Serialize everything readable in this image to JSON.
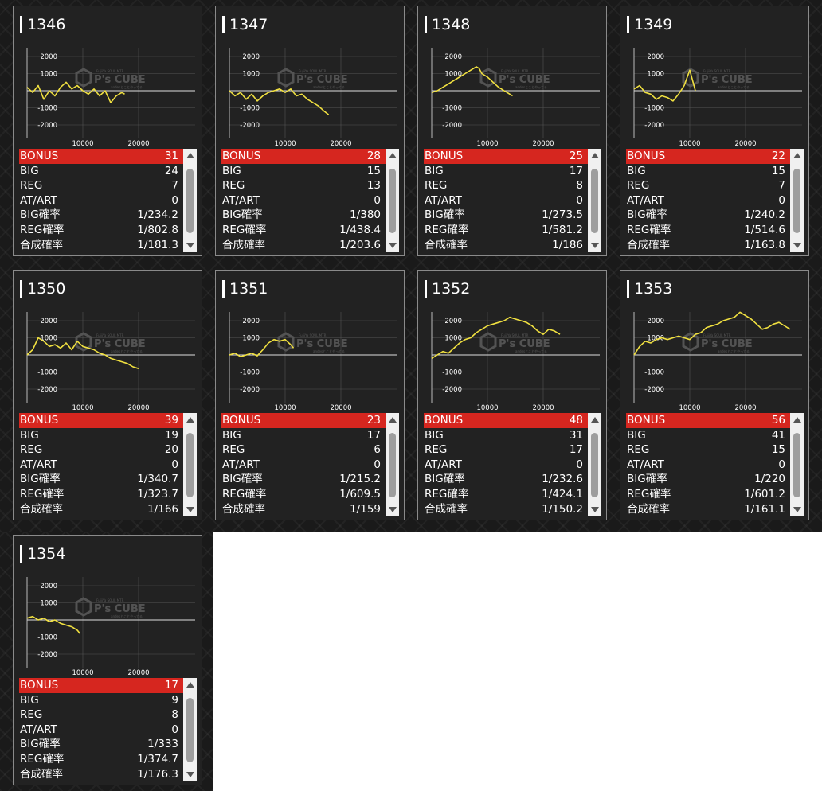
{
  "units": [
    {
      "id": "1346",
      "stats": {
        "bonus": "31",
        "big": "24",
        "reg": "7",
        "at_art": "0",
        "big_rate": "1/234.2",
        "reg_rate": "1/802.8",
        "combined_rate": "1/181.3"
      },
      "chart_data": {
        "type": "line",
        "x_ticks": [
          10000,
          20000
        ],
        "y_ticks": [
          2000,
          1000,
          -1000,
          -2000
        ],
        "xlim": [
          0,
          30000
        ],
        "ylim": [
          -2500,
          2500
        ],
        "x": [
          0,
          1000,
          2000,
          3000,
          4000,
          5000,
          6000,
          7000,
          8000,
          9000,
          10000,
          11000,
          12000,
          13000,
          14000,
          15000,
          16000,
          17000,
          17500
        ],
        "y": [
          200,
          -100,
          300,
          -500,
          0,
          -300,
          200,
          500,
          100,
          300,
          0,
          -200,
          100,
          -300,
          0,
          -700,
          -300,
          -100,
          -200
        ]
      }
    },
    {
      "id": "1347",
      "stats": {
        "bonus": "28",
        "big": "15",
        "reg": "13",
        "at_art": "0",
        "big_rate": "1/380",
        "reg_rate": "1/438.4",
        "combined_rate": "1/203.6"
      },
      "chart_data": {
        "type": "line",
        "x_ticks": [
          10000,
          20000
        ],
        "y_ticks": [
          2000,
          1000,
          -1000,
          -2000
        ],
        "xlim": [
          0,
          30000
        ],
        "ylim": [
          -2500,
          2500
        ],
        "x": [
          0,
          1000,
          2000,
          3000,
          4000,
          5000,
          6000,
          7000,
          8000,
          9000,
          10000,
          11000,
          12000,
          13000,
          14000,
          15000,
          16000,
          17000,
          17800
        ],
        "y": [
          0,
          -300,
          -100,
          -500,
          -200,
          -600,
          -300,
          -100,
          0,
          100,
          -100,
          100,
          -300,
          -200,
          -500,
          -700,
          -900,
          -1200,
          -1400
        ]
      }
    },
    {
      "id": "1348",
      "stats": {
        "bonus": "25",
        "big": "17",
        "reg": "8",
        "at_art": "0",
        "big_rate": "1/273.5",
        "reg_rate": "1/581.2",
        "combined_rate": "1/186"
      },
      "chart_data": {
        "type": "line",
        "x_ticks": [
          10000,
          20000
        ],
        "y_ticks": [
          2000,
          1000,
          -1000,
          -2000
        ],
        "xlim": [
          0,
          30000
        ],
        "ylim": [
          -2500,
          2500
        ],
        "x": [
          0,
          1000,
          2000,
          3000,
          4000,
          5000,
          6000,
          7000,
          8000,
          8500,
          9000,
          10000,
          11000,
          12000,
          13000,
          14000,
          14500
        ],
        "y": [
          -100,
          0,
          200,
          400,
          600,
          800,
          1000,
          1200,
          1400,
          1300,
          1000,
          800,
          500,
          200,
          0,
          -200,
          -300
        ]
      }
    },
    {
      "id": "1349",
      "stats": {
        "bonus": "22",
        "big": "15",
        "reg": "7",
        "at_art": "0",
        "big_rate": "1/240.2",
        "reg_rate": "1/514.6",
        "combined_rate": "1/163.8"
      },
      "chart_data": {
        "type": "line",
        "x_ticks": [
          10000,
          20000
        ],
        "y_ticks": [
          2000,
          1000,
          -1000,
          -2000
        ],
        "xlim": [
          0,
          30000
        ],
        "ylim": [
          -2500,
          2500
        ],
        "x": [
          0,
          1000,
          2000,
          3000,
          4000,
          5000,
          6000,
          7000,
          8000,
          9000,
          10000,
          11000
        ],
        "y": [
          100,
          300,
          -100,
          -200,
          -500,
          -300,
          -400,
          -600,
          -200,
          300,
          1200,
          0
        ]
      }
    },
    {
      "id": "1350",
      "stats": {
        "bonus": "39",
        "big": "19",
        "reg": "20",
        "at_art": "0",
        "big_rate": "1/340.7",
        "reg_rate": "1/323.7",
        "combined_rate": "1/166"
      },
      "chart_data": {
        "type": "line",
        "x_ticks": [
          10000,
          20000
        ],
        "y_ticks": [
          2000,
          1000,
          -1000,
          -2000
        ],
        "xlim": [
          0,
          30000
        ],
        "ylim": [
          -2500,
          2500
        ],
        "x": [
          0,
          1000,
          2000,
          3000,
          4000,
          5000,
          6000,
          7000,
          8000,
          9000,
          10000,
          11000,
          12000,
          13000,
          14000,
          15000,
          16000,
          17000,
          18000,
          19000,
          20000
        ],
        "y": [
          0,
          300,
          1000,
          800,
          500,
          600,
          400,
          700,
          300,
          800,
          500,
          400,
          300,
          100,
          0,
          -200,
          -300,
          -400,
          -500,
          -700,
          -800
        ]
      }
    },
    {
      "id": "1351",
      "stats": {
        "bonus": "23",
        "big": "17",
        "reg": "6",
        "at_art": "0",
        "big_rate": "1/215.2",
        "reg_rate": "1/609.5",
        "combined_rate": "1/159"
      },
      "chart_data": {
        "type": "line",
        "x_ticks": [
          10000,
          20000
        ],
        "y_ticks": [
          2000,
          1000,
          -1000,
          -2000
        ],
        "xlim": [
          0,
          30000
        ],
        "ylim": [
          -2500,
          2500
        ],
        "x": [
          0,
          1000,
          2000,
          3000,
          4000,
          5000,
          6000,
          7000,
          8000,
          9000,
          10000,
          11000,
          11500
        ],
        "y": [
          0,
          100,
          -100,
          0,
          100,
          -50,
          300,
          700,
          900,
          800,
          900,
          600,
          400
        ]
      }
    },
    {
      "id": "1352",
      "stats": {
        "bonus": "48",
        "big": "31",
        "reg": "17",
        "at_art": "0",
        "big_rate": "1/232.6",
        "reg_rate": "1/424.1",
        "combined_rate": "1/150.2"
      },
      "chart_data": {
        "type": "line",
        "x_ticks": [
          10000,
          20000
        ],
        "y_ticks": [
          2000,
          1000,
          -1000,
          -2000
        ],
        "xlim": [
          0,
          30000
        ],
        "ylim": [
          -2500,
          2500
        ],
        "x": [
          0,
          1000,
          2000,
          3000,
          4000,
          5000,
          6000,
          7000,
          8000,
          9000,
          10000,
          11000,
          12000,
          13000,
          14000,
          15000,
          16000,
          17000,
          18000,
          19000,
          20000,
          21000,
          22000,
          23000
        ],
        "y": [
          -200,
          0,
          200,
          100,
          400,
          700,
          900,
          1000,
          1300,
          1500,
          1700,
          1800,
          1900,
          2000,
          2200,
          2100,
          2000,
          1900,
          1700,
          1400,
          1200,
          1500,
          1400,
          1200
        ]
      }
    },
    {
      "id": "1353",
      "stats": {
        "bonus": "56",
        "big": "41",
        "reg": "15",
        "at_art": "0",
        "big_rate": "1/220",
        "reg_rate": "1/601.2",
        "combined_rate": "1/161.1"
      },
      "chart_data": {
        "type": "line",
        "x_ticks": [
          10000,
          20000
        ],
        "y_ticks": [
          2000,
          1000,
          -1000,
          -2000
        ],
        "xlim": [
          0,
          30000
        ],
        "ylim": [
          -2500,
          2500
        ],
        "x": [
          0,
          1000,
          2000,
          3000,
          4000,
          5000,
          6000,
          7000,
          8000,
          9000,
          10000,
          11000,
          12000,
          13000,
          14000,
          15000,
          16000,
          17000,
          18000,
          19000,
          20000,
          21000,
          22000,
          23000,
          24000,
          25000,
          26000,
          27000,
          28000
        ],
        "y": [
          0,
          500,
          800,
          700,
          900,
          1000,
          900,
          1000,
          1100,
          1000,
          900,
          1200,
          1300,
          1600,
          1700,
          1800,
          2000,
          2100,
          2200,
          2500,
          2300,
          2100,
          1800,
          1500,
          1600,
          1800,
          1900,
          1700,
          1500
        ]
      }
    },
    {
      "id": "1354",
      "stats": {
        "bonus": "17",
        "big": "9",
        "reg": "8",
        "at_art": "0",
        "big_rate": "1/333",
        "reg_rate": "1/374.7",
        "combined_rate": "1/176.3"
      },
      "chart_data": {
        "type": "line",
        "x_ticks": [
          10000,
          20000
        ],
        "y_ticks": [
          2000,
          1000,
          -1000,
          -2000
        ],
        "xlim": [
          0,
          30000
        ],
        "ylim": [
          -2500,
          2500
        ],
        "x": [
          0,
          1000,
          2000,
          3000,
          4000,
          5000,
          6000,
          7000,
          8000,
          9000,
          9500
        ],
        "y": [
          100,
          200,
          0,
          100,
          -100,
          0,
          -200,
          -300,
          -400,
          -600,
          -800
        ]
      }
    }
  ],
  "labels": {
    "bonus": "BONUS",
    "big": "BIG",
    "reg": "REG",
    "at_art": "AT/ART",
    "big_rate": "BIG確率",
    "reg_rate": "REG確率",
    "combined_rate": "合成確率"
  },
  "watermark": {
    "brand": "P's CUBE",
    "subtitle": "FujiiYa SOUL MTR",
    "caption": "andesとことやってる"
  },
  "colors": {
    "line": "#f0e040",
    "bonus_bg": "#d6261f",
    "card_bg": "#222222",
    "grid": "#555555"
  }
}
